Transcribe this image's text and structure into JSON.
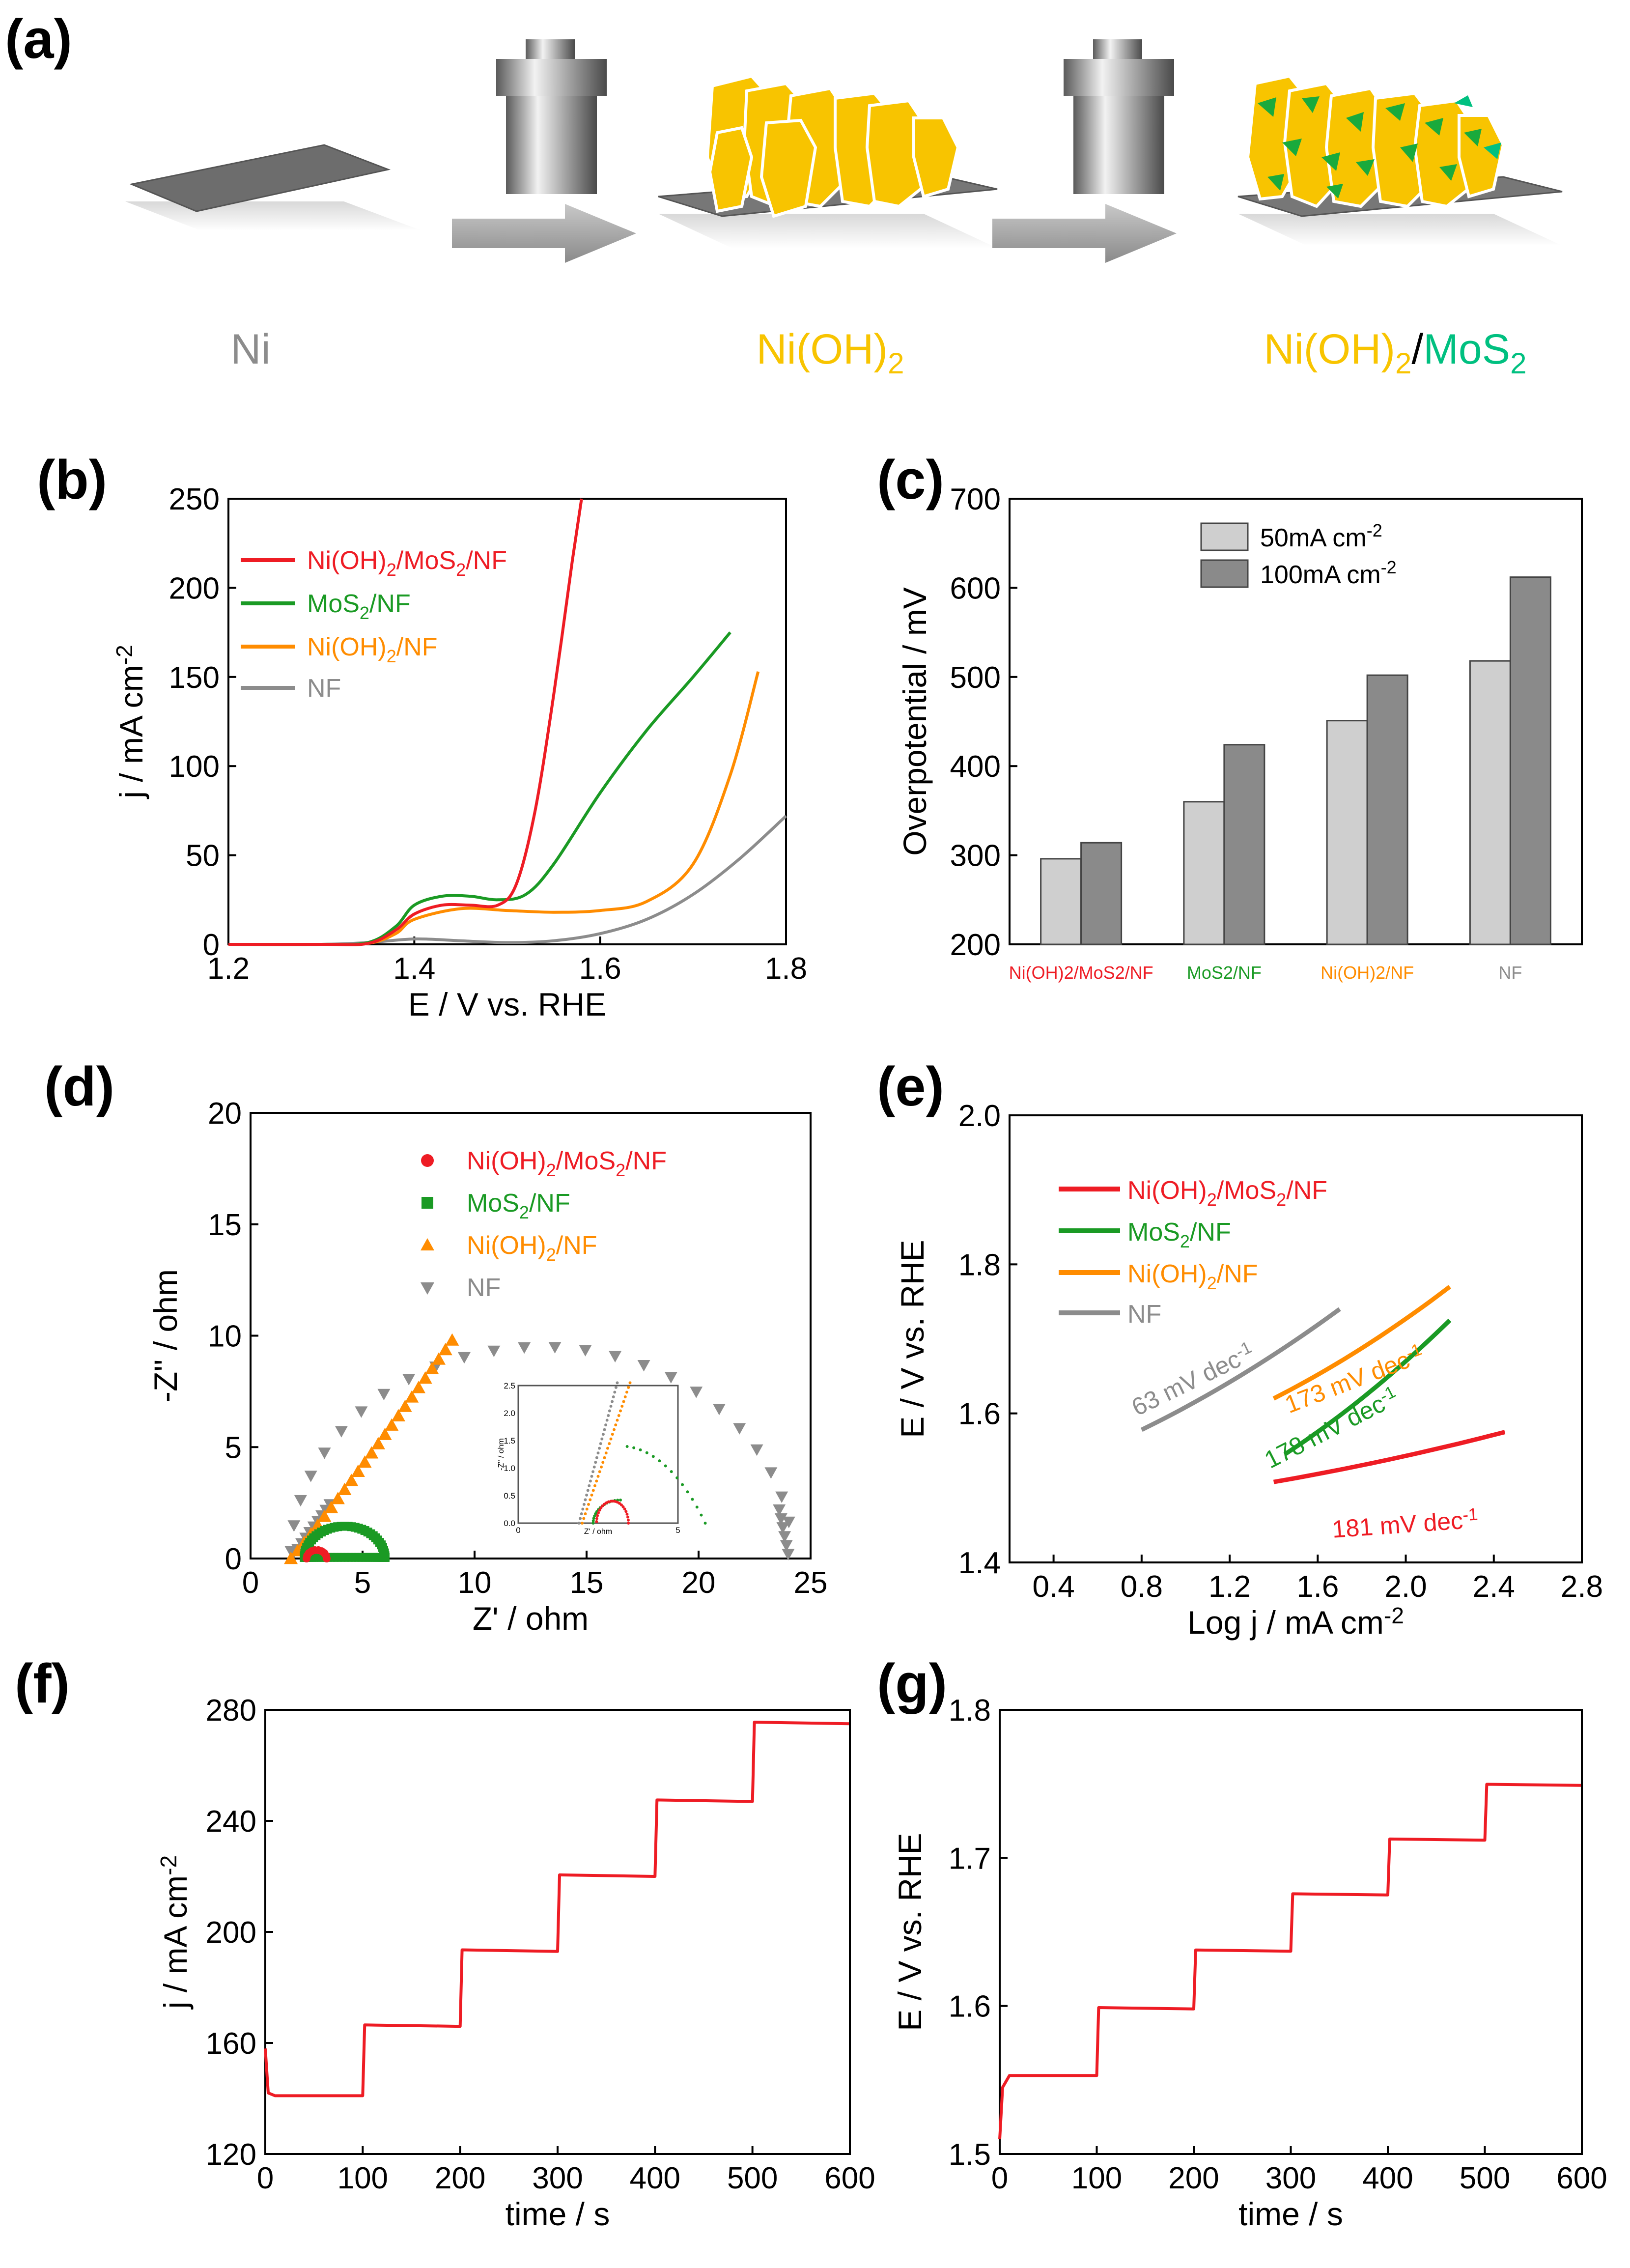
{
  "colors": {
    "red": "#ee1c24",
    "green": "#1a9a24",
    "orange": "#ff8c00",
    "gray": "#8c8c8c",
    "yellow": "#f8c400",
    "teal": "#00c080",
    "dark_green": "#008c38"
  },
  "panels": {
    "a": {
      "label": "(a)",
      "captions": {
        "ni": "Ni",
        "nioh2": "Ni(OH)",
        "sub2": "2",
        "slash": "/",
        "mos": "MoS",
        "mos_sub": "2"
      }
    },
    "b": {
      "label": "(b)"
    },
    "c": {
      "label": "(c)"
    },
    "d": {
      "label": "(d)"
    },
    "e": {
      "label": "(e)"
    },
    "f": {
      "label": "(f)"
    },
    "g": {
      "label": "(g)"
    }
  },
  "chart_data": [
    {
      "panel": "b",
      "type": "line",
      "xlabel": "E / V vs. RHE",
      "ylabel": "j / mA cm-2",
      "xlim": [
        1.2,
        1.8
      ],
      "ylim": [
        0,
        250
      ],
      "xticks": [
        "1.2",
        "1.4",
        "1.6",
        "1.8"
      ],
      "yticks": [
        "0",
        "50",
        "100",
        "150",
        "200",
        "250"
      ],
      "legend": [
        "Ni(OH)2/MoS2/NF",
        "MoS2/NF",
        "Ni(OH)2/NF",
        "NF"
      ],
      "series": [
        {
          "name": "Ni(OH)2/MoS2/NF",
          "x": [
            1.2,
            1.3,
            1.35,
            1.38,
            1.4,
            1.43,
            1.46,
            1.49,
            1.51,
            1.53,
            1.55,
            1.57,
            1.58
          ],
          "y": [
            0,
            0,
            0.5,
            8,
            17,
            22,
            22,
            22,
            34,
            75,
            140,
            215,
            250
          ]
        },
        {
          "name": "MoS2/NF",
          "x": [
            1.2,
            1.3,
            1.35,
            1.38,
            1.4,
            1.43,
            1.46,
            1.49,
            1.52,
            1.55,
            1.6,
            1.65,
            1.7,
            1.74
          ],
          "y": [
            0,
            0,
            1,
            10,
            22,
            27,
            27,
            25,
            28,
            45,
            85,
            120,
            150,
            175
          ]
        },
        {
          "name": "Ni(OH)2/NF",
          "x": [
            1.2,
            1.3,
            1.35,
            1.38,
            1.4,
            1.45,
            1.5,
            1.55,
            1.6,
            1.65,
            1.7,
            1.74,
            1.77
          ],
          "y": [
            0,
            0,
            0.5,
            6,
            14,
            20,
            19,
            18,
            19,
            24,
            45,
            95,
            153
          ]
        },
        {
          "name": "NF",
          "x": [
            1.2,
            1.3,
            1.35,
            1.4,
            1.45,
            1.5,
            1.55,
            1.6,
            1.65,
            1.7,
            1.75,
            1.8
          ],
          "y": [
            0,
            0,
            1,
            3,
            2,
            1,
            2,
            6,
            14,
            28,
            48,
            72
          ]
        }
      ]
    },
    {
      "panel": "c",
      "type": "bar",
      "ylabel": "Overpotential / mV",
      "ylim": [
        200,
        700
      ],
      "yticks": [
        "200",
        "300",
        "400",
        "500",
        "600",
        "700"
      ],
      "categories": [
        "Ni(OH)2/MoS2/NF",
        "MoS2/NF",
        "Ni(OH)2/NF",
        "NF"
      ],
      "legend": [
        "50mA cm-2",
        "100mA cm-2"
      ],
      "series": [
        {
          "name": "50mA cm-2",
          "values": [
            296,
            360,
            451,
            518
          ]
        },
        {
          "name": "100mA cm-2",
          "values": [
            314,
            424,
            502,
            612
          ]
        }
      ]
    },
    {
      "panel": "d",
      "type": "scatter",
      "xlabel": "Z' / ohm",
      "ylabel": "-Z'' / ohm",
      "xlim": [
        0,
        25
      ],
      "ylim": [
        0,
        20
      ],
      "xticks": [
        "0",
        "5",
        "10",
        "15",
        "20",
        "25"
      ],
      "yticks": [
        "0",
        "5",
        "10",
        "15",
        "20"
      ],
      "legend": [
        "Ni(OH)2/MoS2/NF",
        "MoS2/NF",
        "Ni(OH)2/NF",
        "NF"
      ],
      "inset": {
        "xlim": [
          0,
          5
        ],
        "ylim": [
          0,
          2.5
        ],
        "xticks": [
          "0",
          "5"
        ],
        "yticks": [
          "0.0",
          "0.5",
          "1.0",
          "1.5",
          "2.0",
          "2.5"
        ],
        "xlabel": "Z' / ohm",
        "ylabel": "-Z'' / ohm"
      },
      "arcs": [
        {
          "name": "Ni(OH)2/MoS2/NF",
          "center": 2.95,
          "radius": 0.45,
          "height": 0.38,
          "start": 0,
          "end": 180
        },
        {
          "name": "MoS2/NF",
          "center": 4.2,
          "radius": 1.9,
          "height": 1.45,
          "start": 0,
          "end": 190
        },
        {
          "name": "Ni(OH)2/NF",
          "x0": 1.8,
          "x1": 9.0,
          "y1": 9.8
        },
        {
          "name": "NF",
          "center": 13.0,
          "radius": 11.2,
          "height": 9.5,
          "start": 0,
          "end": 180
        }
      ]
    },
    {
      "panel": "e",
      "type": "line",
      "xlabel": "Log j / mA cm-2",
      "ylabel": "E / V vs. RHE",
      "xlim": [
        0.2,
        2.8
      ],
      "ylim": [
        1.4,
        2.0
      ],
      "xticks": [
        "0.4",
        "0.8",
        "1.2",
        "1.6",
        "2.0",
        "2.4",
        "2.8"
      ],
      "yticks": [
        "1.4",
        "1.6",
        "1.8",
        "2.0"
      ],
      "legend": [
        "Ni(OH)2/MoS2/NF",
        "MoS2/NF",
        "Ni(OH)2/NF",
        "NF"
      ],
      "annotations": [
        "181 mV dec-1",
        "178 mV dec-1",
        "173 mV dec-1",
        "63 mV dec-1"
      ],
      "series": [
        {
          "name": "Ni(OH)2/MoS2/NF",
          "x": [
            1.4,
            2.45
          ],
          "y": [
            1.508,
            1.575
          ]
        },
        {
          "name": "MoS2/NF",
          "x": [
            1.45,
            2.2
          ],
          "y": [
            1.545,
            1.725
          ]
        },
        {
          "name": "Ni(OH)2/NF",
          "x": [
            1.4,
            2.2
          ],
          "y": [
            1.62,
            1.77
          ]
        },
        {
          "name": "NF",
          "x": [
            0.8,
            1.7
          ],
          "y": [
            1.578,
            1.74
          ]
        }
      ]
    },
    {
      "panel": "f",
      "type": "line",
      "xlabel": "time / s",
      "ylabel": "j / mA cm-2",
      "xlim": [
        0,
        600
      ],
      "ylim": [
        120,
        280
      ],
      "xticks": [
        "0",
        "100",
        "200",
        "300",
        "400",
        "500",
        "600"
      ],
      "yticks": [
        "120",
        "160",
        "200",
        "240",
        "280"
      ],
      "steps": [
        141,
        166,
        193,
        220,
        247,
        275
      ]
    },
    {
      "panel": "g",
      "type": "line",
      "xlabel": "time / s",
      "ylabel": "E / V vs. RHE",
      "xlim": [
        0,
        600
      ],
      "ylim": [
        1.5,
        1.8
      ],
      "xticks": [
        "0",
        "100",
        "200",
        "300",
        "400",
        "500",
        "600"
      ],
      "yticks": [
        "1.5",
        "1.6",
        "1.7",
        "1.8"
      ],
      "steps": [
        1.553,
        1.598,
        1.637,
        1.675,
        1.712,
        1.749
      ]
    }
  ]
}
